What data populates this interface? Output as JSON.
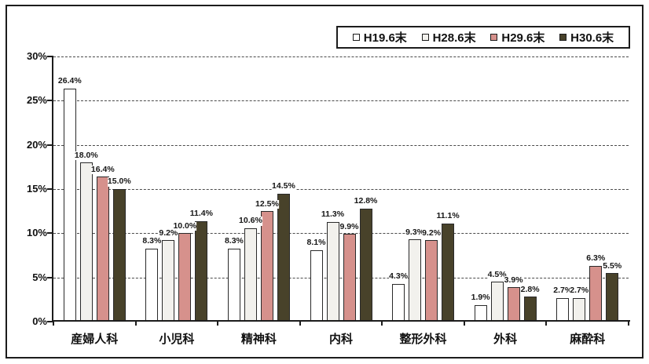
{
  "chart_data": {
    "type": "bar",
    "title": "",
    "xlabel": "",
    "ylabel": "",
    "categories": [
      "産婦人科",
      "小児科",
      "精神科",
      "内科",
      "整形外科",
      "外科",
      "麻酔科"
    ],
    "series": [
      {
        "name": "H19.6末",
        "color": "#ffffff",
        "values": [
          26.4,
          8.3,
          8.3,
          8.1,
          4.3,
          1.9,
          2.7
        ]
      },
      {
        "name": "H28.6末",
        "color": "#f2f1ed",
        "values": [
          18.0,
          9.2,
          10.6,
          11.3,
          9.3,
          4.5,
          2.7
        ]
      },
      {
        "name": "H29.6末",
        "color": "#d6918c",
        "values": [
          16.4,
          10.0,
          12.5,
          9.9,
          9.2,
          3.9,
          6.3
        ]
      },
      {
        "name": "H30.6末",
        "color": "#48422a",
        "values": [
          15.0,
          11.4,
          14.5,
          12.8,
          11.1,
          2.8,
          5.5
        ]
      }
    ],
    "ylim": [
      0,
      30
    ],
    "ytick_step": 5,
    "ytick_suffix": "%",
    "value_label_suffix": "%",
    "grid": "horizontal-dashed",
    "legend_position": "top-right",
    "bar_border_color": "#2a2a2a",
    "axis_color": "#1c1c1c"
  }
}
